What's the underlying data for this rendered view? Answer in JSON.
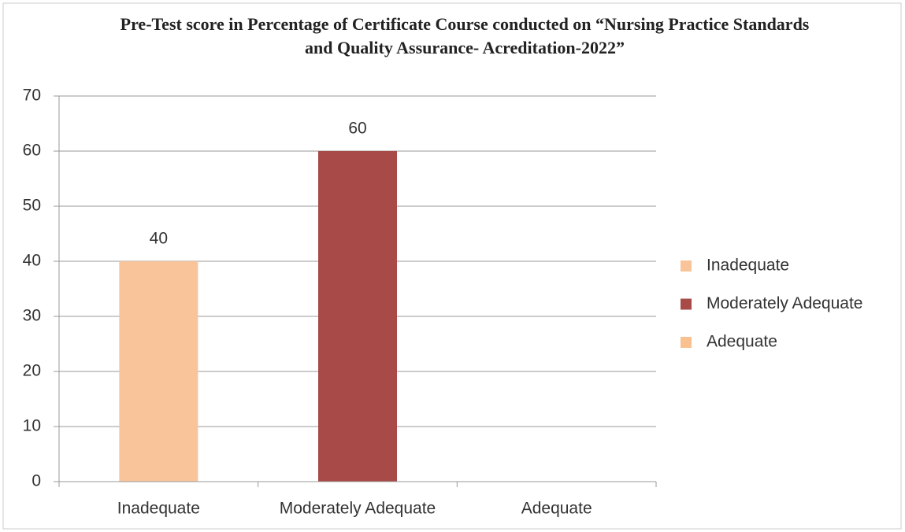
{
  "chart_data": {
    "type": "bar",
    "title": "Pre-Test score in Percentage of Certificate Course conducted on “Nursing Practice Standards and Quality Assurance- Acreditation-2022”",
    "categories": [
      "Inadequate",
      "Moderately Adequate",
      "Adequate"
    ],
    "values": [
      40,
      60,
      0
    ],
    "value_labels": [
      "40",
      "60",
      null
    ],
    "colors": [
      "#f9c49a",
      "#a84a48",
      "#fac08f"
    ],
    "ylim": [
      0,
      70
    ],
    "yticks": [
      0,
      10,
      20,
      30,
      40,
      50,
      60,
      70
    ],
    "grid": true,
    "legend": "right"
  }
}
